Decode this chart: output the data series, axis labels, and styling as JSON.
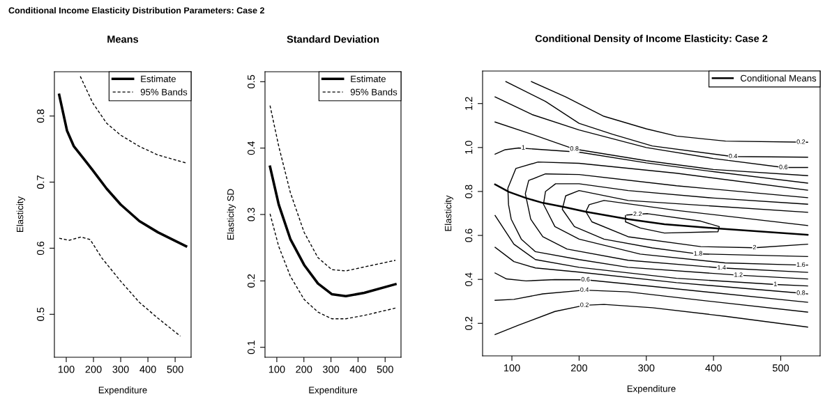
{
  "chart_data": [
    {
      "type": "line",
      "title": "Means",
      "xlabel": "Expenditure",
      "ylabel": "Elasticity",
      "annotations": [
        "Conditional Income Elasticity Distribution Parameters: Case 2"
      ],
      "xlim": [
        56.4,
        558.6
      ],
      "xticks": [
        100,
        200,
        300,
        400,
        500
      ],
      "ylim": [
        0.435,
        0.867
      ],
      "yticks": [
        0.5,
        0.6,
        0.7,
        0.8
      ],
      "grid": false,
      "legend": "top right",
      "marker": "none",
      "series": [
        {
          "name": "Estimate",
          "color": "#000000",
          "line_style": "solid",
          "x": [
            74,
            102.6,
            128,
            163,
            197,
            248.5,
            300,
            368.7,
            437,
            540
          ],
          "values": [
            0.832,
            0.778,
            0.754,
            0.736,
            0.718,
            0.69,
            0.666,
            0.641,
            0.624,
            0.603
          ]
        },
        {
          "name": "95% Bands",
          "color": "#000000",
          "line_style": "dashed",
          "x": [
            151.5,
            197,
            248.5,
            300,
            368.7,
            437,
            540
          ],
          "values": [
            0.86,
            0.82,
            0.789,
            0.771,
            0.754,
            0.741,
            0.729
          ]
        },
        {
          "color": "#000000",
          "line_style": "dashed",
          "x": [
            74,
            111,
            154,
            188,
            231,
            300,
            368.7,
            437,
            519
          ],
          "values": [
            0.615,
            0.612,
            0.617,
            0.613,
            0.585,
            0.55,
            0.518,
            0.494,
            0.467
          ]
        }
      ]
    },
    {
      "type": "line",
      "title": "Standard Deviation",
      "xlabel": "Expenditure",
      "ylabel": "Elasticity SD",
      "xlim": [
        56.4,
        558.6
      ],
      "xticks": [
        100,
        200,
        300,
        400,
        500
      ],
      "ylim": [
        0.085,
        0.515
      ],
      "yticks": [
        0.1,
        0.2,
        0.3,
        0.4,
        0.5
      ],
      "grid": false,
      "legend": "top right",
      "marker": "none",
      "series": [
        {
          "name": "Estimate",
          "color": "#000000",
          "line_style": "solid",
          "x": [
            75,
            107,
            150,
            201,
            252,
            303,
            355,
            423,
            538
          ],
          "values": [
            0.372,
            0.315,
            0.263,
            0.224,
            0.196,
            0.18,
            0.177,
            0.182,
            0.195
          ]
        },
        {
          "name": "95% Bands",
          "color": "#000000",
          "line_style": "dashed",
          "x": [
            75,
            107,
            150,
            201,
            252,
            303,
            355,
            423,
            538
          ],
          "values": [
            0.464,
            0.403,
            0.333,
            0.273,
            0.235,
            0.217,
            0.215,
            0.221,
            0.231
          ]
        },
        {
          "color": "#000000",
          "line_style": "dashed",
          "x": [
            75,
            107,
            150,
            201,
            252,
            303,
            355,
            423,
            538
          ],
          "values": [
            0.301,
            0.252,
            0.207,
            0.172,
            0.153,
            0.143,
            0.143,
            0.148,
            0.159
          ]
        }
      ]
    },
    {
      "type": "line",
      "title": "Conditional Density of Income Elasticity: Case 2",
      "xlabel": "Expenditure",
      "ylabel": "Elasticity",
      "xlim": [
        56.4,
        558.6
      ],
      "xticks": [
        100,
        200,
        300,
        400,
        500
      ],
      "ylim": [
        0.052,
        1.348
      ],
      "yticks": [
        0.2,
        0.4,
        0.6,
        0.8,
        {
          "value": 1.0,
          "label": "1.0"
        },
        1.2
      ],
      "grid": false,
      "legend": "top right",
      "marker": "none",
      "series": [
        {
          "name": "Conditional Means",
          "color": "#000000",
          "line_style": "solid",
          "x": [
            75,
            95.7,
            121,
            146,
            175,
            209.6,
            273,
            327,
            408.5,
            540
          ],
          "values": [
            0.832,
            0.798,
            0.77,
            0.748,
            0.731,
            0.708,
            0.674,
            0.651,
            0.631,
            0.603
          ]
        },
        {
          "color": "#000000",
          "line_style": "solid",
          "x": [
            129,
            180,
            237,
            300,
            345,
            418,
            540
          ],
          "values": [
            1.3,
            1.23,
            1.142,
            1.085,
            1.052,
            1.029,
            1.024
          ]
        },
        {
          "color": "#000000",
          "line_style": "solid",
          "x": [
            91,
            150,
            200,
            250,
            309,
            428,
            540
          ],
          "values": [
            1.3,
            1.21,
            1.11,
            1.06,
            1.007,
            0.959,
            0.956
          ]
        },
        {
          "color": "#000000",
          "line_style": "solid",
          "x": [
            75,
            130,
            200,
            300,
            400,
            504,
            540
          ],
          "values": [
            1.23,
            1.15,
            1.08,
            1.0,
            0.95,
            0.909,
            0.909
          ]
        },
        {
          "color": "#000000",
          "line_style": "solid",
          "x": [
            75,
            130,
            193,
            300,
            400,
            540
          ],
          "values": [
            1.116,
            1.06,
            0.993,
            0.94,
            0.9,
            0.872
          ]
        },
        {
          "color": "#000000",
          "line_style": "solid",
          "x": [
            75,
            90,
            110,
            200,
            300,
            400,
            540
          ],
          "values": [
            0.97,
            0.99,
            0.998,
            0.979,
            0.93,
            0.89,
            0.838
          ]
        },
        {
          "color": "#000000",
          "line_style": "solid",
          "x": [
            540,
            345,
            200,
            139,
            106,
            94,
            95,
            99,
            114,
            135,
            200,
            273,
            437,
            540
          ],
          "values": [
            0.806,
            0.883,
            0.928,
            0.934,
            0.905,
            0.815,
            0.74,
            0.674,
            0.583,
            0.526,
            0.49,
            0.455,
            0.419,
            0.402
          ]
        },
        {
          "color": "#000000",
          "line_style": "solid",
          "x": [
            540,
            345,
            200,
            150,
            125,
            120,
            128,
            146,
            182,
            273,
            412,
            540
          ],
          "values": [
            0.772,
            0.826,
            0.877,
            0.88,
            0.85,
            0.79,
            0.674,
            0.594,
            0.538,
            0.487,
            0.452,
            0.432
          ]
        },
        {
          "color": "#000000",
          "line_style": "solid",
          "x": [
            540,
            400,
            273,
            200,
            165,
            150,
            147,
            164,
            200,
            291,
            417,
            530,
            540
          ],
          "values": [
            0.742,
            0.77,
            0.804,
            0.835,
            0.835,
            0.8,
            0.742,
            0.64,
            0.583,
            0.515,
            0.475,
            0.465,
            0.465
          ]
        },
        {
          "color": "#000000",
          "line_style": "solid",
          "x": [
            540,
            273,
            200,
            180,
            175,
            193,
            237,
            309,
            377,
            540
          ],
          "values": [
            0.705,
            0.759,
            0.804,
            0.78,
            0.719,
            0.64,
            0.583,
            0.543,
            0.516,
            0.504
          ]
        },
        {
          "color": "#000000",
          "line_style": "solid",
          "x": [
            540,
            345,
            237,
            215,
            210,
            219,
            273,
            381,
            461,
            540
          ],
          "values": [
            0.645,
            0.714,
            0.759,
            0.74,
            0.708,
            0.662,
            0.594,
            0.549,
            0.544,
            0.56
          ]
        },
        {
          "color": "#000000",
          "line_style": "solid",
          "x": [
            269,
            269,
            291,
            327,
            406.7,
            408.5,
            381,
            302,
            271
          ],
          "values": [
            0.691,
            0.662,
            0.634,
            0.611,
            0.617,
            0.64,
            0.665,
            0.699,
            0.693
          ]
        },
        {
          "color": "#000000",
          "line_style": "solid",
          "x": [
            75,
            103,
            135,
            200,
            345,
            492,
            540
          ],
          "values": [
            0.691,
            0.56,
            0.49,
            0.455,
            0.405,
            0.377,
            0.37
          ]
        },
        {
          "color": "#000000",
          "line_style": "solid",
          "x": [
            75,
            103,
            135,
            200,
            345,
            530,
            540
          ],
          "values": [
            0.546,
            0.481,
            0.452,
            0.433,
            0.385,
            0.337,
            0.334
          ]
        },
        {
          "color": "#000000",
          "line_style": "solid",
          "x": [
            75,
            92,
            121,
            164,
            209.6,
            309,
            540
          ],
          "values": [
            0.429,
            0.402,
            0.393,
            0.399,
            0.398,
            0.368,
            0.296
          ]
        },
        {
          "color": "#000000",
          "line_style": "solid",
          "x": [
            75,
            103,
            146,
            208,
            273,
            381,
            540
          ],
          "values": [
            0.305,
            0.309,
            0.334,
            0.351,
            0.343,
            0.305,
            0.251
          ]
        },
        {
          "color": "#000000",
          "line_style": "solid",
          "x": [
            75,
            110,
            164,
            208,
            237,
            309,
            418,
            540
          ],
          "values": [
            0.149,
            0.192,
            0.254,
            0.282,
            0.286,
            0.271,
            0.232,
            0.183
          ]
        }
      ],
      "annotations": [
        {
          "text": "0.2",
          "x": 530,
          "y": 1.024
        },
        {
          "text": "0.4",
          "x": 429,
          "y": 0.959
        },
        {
          "text": "0.6",
          "x": 504,
          "y": 0.909
        },
        {
          "text": "0.8",
          "x": 193,
          "y": 0.993
        },
        {
          "text": "1",
          "x": 117,
          "y": 0.998
        },
        {
          "text": "2.2",
          "x": 287,
          "y": 0.696
        },
        {
          "text": "2",
          "x": 461,
          "y": 0.544
        },
        {
          "text": "1.8",
          "x": 377,
          "y": 0.516
        },
        {
          "text": "1.6",
          "x": 530,
          "y": 0.465
        },
        {
          "text": "1.4",
          "x": 412,
          "y": 0.452
        },
        {
          "text": "1.2",
          "x": 437,
          "y": 0.419
        },
        {
          "text": "1",
          "x": 492,
          "y": 0.377
        },
        {
          "text": "0.8",
          "x": 530,
          "y": 0.337
        },
        {
          "text": "0.6",
          "x": 209.6,
          "y": 0.398
        },
        {
          "text": "0.4",
          "x": 208,
          "y": 0.351
        },
        {
          "text": "0.2",
          "x": 208,
          "y": 0.282
        }
      ]
    }
  ]
}
